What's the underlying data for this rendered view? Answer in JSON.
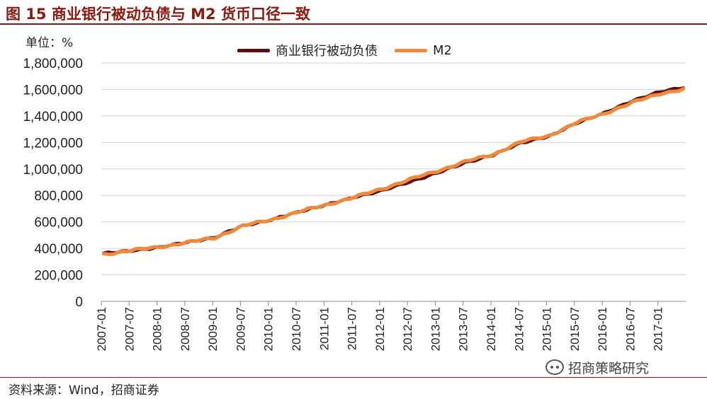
{
  "header": {
    "title": "图 15 商业银行被动负债与 M2 货币口径一致",
    "unit": "单位：%"
  },
  "footer": {
    "source": "资料来源：Wind，招商证券",
    "watermark": "招商策略研究"
  },
  "colors": {
    "liabilities": "#5c0f0f",
    "m2": "#ef8a3c",
    "title": "#8b1a10",
    "grid": "#d0d0d0"
  },
  "chart_data": {
    "type": "line",
    "title": "图 15 商业银行被动负债与 M2 货币口径一致",
    "xlabel": "",
    "ylabel": "单位：%",
    "ylim": [
      0,
      1800000
    ],
    "yticks": [
      0,
      200000,
      400000,
      600000,
      800000,
      1000000,
      1200000,
      1400000,
      1600000,
      1800000
    ],
    "ytick_labels": [
      "0",
      "200,000",
      "400,000",
      "600,000",
      "800,000",
      "1,000,000",
      "1,200,000",
      "1,400,000",
      "1,600,000",
      "1,800,000"
    ],
    "x_start": "2007-01",
    "x_end": "2017-06",
    "xtick_labels": [
      "2007-01",
      "2007-07",
      "2008-01",
      "2008-07",
      "2009-01",
      "2009-07",
      "2010-01",
      "2010-07",
      "2011-01",
      "2011-07",
      "2012-01",
      "2012-07",
      "2013-01",
      "2013-07",
      "2014-01",
      "2014-07",
      "2015-01",
      "2015-07",
      "2016-01",
      "2016-07",
      "2017-01"
    ],
    "grid": true,
    "legend_position": "top-center",
    "series": [
      {
        "name": "商业银行被动负债",
        "color": "#5c0f0f",
        "anchors": [
          [
            "2007-01",
            360000
          ],
          [
            "2007-07",
            385000
          ],
          [
            "2008-01",
            405000
          ],
          [
            "2008-07",
            450000
          ],
          [
            "2009-01",
            480000
          ],
          [
            "2009-07",
            575000
          ],
          [
            "2010-01",
            610000
          ],
          [
            "2010-07",
            680000
          ],
          [
            "2011-01",
            725000
          ],
          [
            "2011-07",
            790000
          ],
          [
            "2012-01",
            830000
          ],
          [
            "2012-07",
            905000
          ],
          [
            "2013-01",
            965000
          ],
          [
            "2013-07",
            1050000
          ],
          [
            "2014-01",
            1100000
          ],
          [
            "2014-07",
            1200000
          ],
          [
            "2015-01",
            1240000
          ],
          [
            "2015-07",
            1350000
          ],
          [
            "2016-01",
            1420000
          ],
          [
            "2016-07",
            1520000
          ],
          [
            "2017-01",
            1580000
          ],
          [
            "2017-06",
            1620000
          ]
        ]
      },
      {
        "name": "M2",
        "color": "#ef8a3c",
        "anchors": [
          [
            "2007-01",
            355000
          ],
          [
            "2007-07",
            385000
          ],
          [
            "2008-01",
            410000
          ],
          [
            "2008-07",
            445000
          ],
          [
            "2009-01",
            480000
          ],
          [
            "2009-07",
            570000
          ],
          [
            "2010-01",
            615000
          ],
          [
            "2010-07",
            675000
          ],
          [
            "2011-01",
            730000
          ],
          [
            "2011-07",
            785000
          ],
          [
            "2012-01",
            850000
          ],
          [
            "2012-07",
            920000
          ],
          [
            "2013-01",
            985000
          ],
          [
            "2013-07",
            1055000
          ],
          [
            "2014-01",
            1110000
          ],
          [
            "2014-07",
            1205000
          ],
          [
            "2015-01",
            1250000
          ],
          [
            "2015-07",
            1350000
          ],
          [
            "2016-01",
            1420000
          ],
          [
            "2016-07",
            1500000
          ],
          [
            "2017-01",
            1570000
          ],
          [
            "2017-06",
            1600000
          ]
        ]
      }
    ]
  }
}
